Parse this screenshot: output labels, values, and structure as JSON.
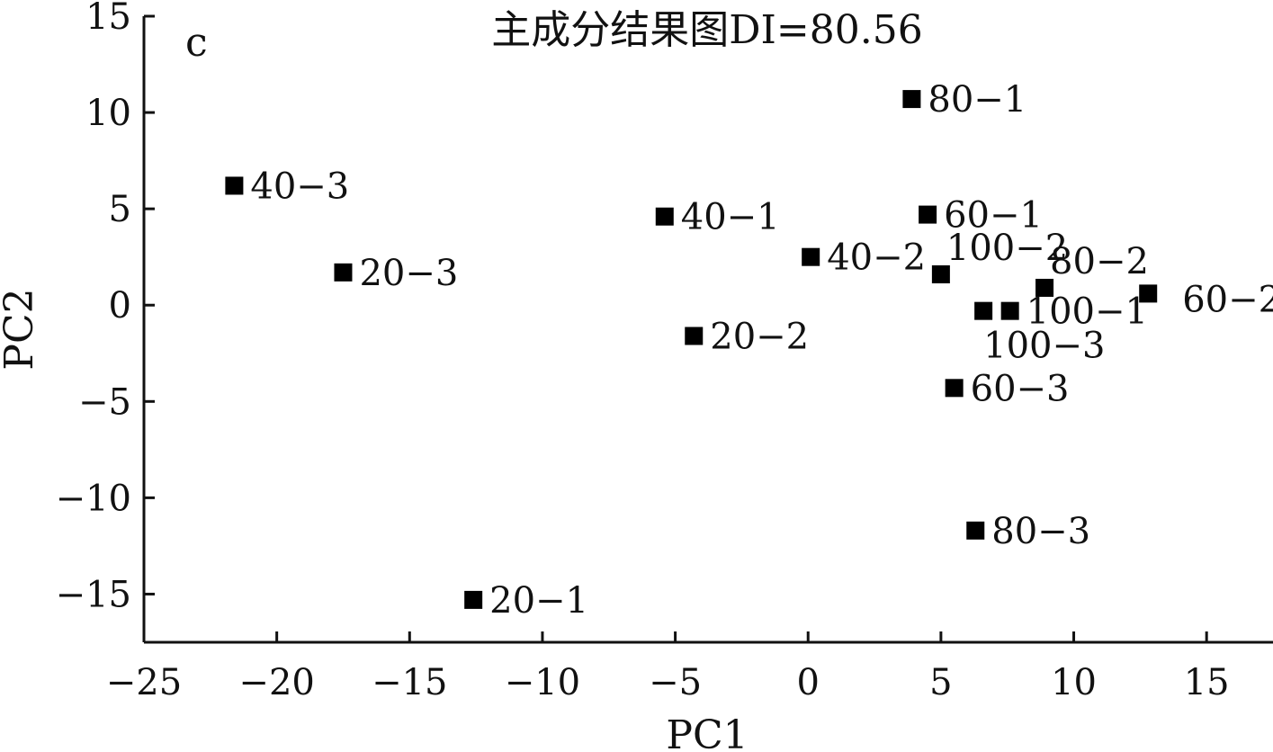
{
  "chart_data": {
    "type": "scatter",
    "title": "主成分结果图DI=80.56",
    "panel_label": "c",
    "xlabel": "PC1",
    "ylabel": "PC2",
    "xlim": [
      -25,
      17.5
    ],
    "ylim": [
      -17.5,
      15
    ],
    "xticks": [
      -25,
      -20,
      -15,
      -10,
      -5,
      0,
      5,
      10,
      15
    ],
    "yticks": [
      -15,
      -10,
      -5,
      0,
      5,
      10,
      15
    ],
    "xtick_labels": [
      "−25",
      "−20",
      "−15",
      "−10",
      "−5",
      "0",
      "5",
      "10",
      "15"
    ],
    "ytick_labels": [
      "−15",
      "−10",
      "−5",
      "0",
      "5",
      "10",
      "15"
    ],
    "grid": false,
    "marker": "square",
    "marker_color": "#000000",
    "points": [
      {
        "label": "80−1",
        "x": 3.9,
        "y": 10.7,
        "label_pos": "right"
      },
      {
        "label": "40−3",
        "x": -21.6,
        "y": 6.2,
        "label_pos": "right"
      },
      {
        "label": "40−1",
        "x": -5.4,
        "y": 4.6,
        "label_pos": "right"
      },
      {
        "label": "60−1",
        "x": 4.5,
        "y": 4.7,
        "label_pos": "right"
      },
      {
        "label": "20−3",
        "x": -17.5,
        "y": 1.7,
        "label_pos": "right"
      },
      {
        "label": "40−2",
        "x": 0.1,
        "y": 2.5,
        "label_pos": "right"
      },
      {
        "label": "100−2",
        "x": 5.0,
        "y": 1.6,
        "label_pos": "above-right"
      },
      {
        "label": "80−2",
        "x": 8.9,
        "y": 0.9,
        "label_pos": "above-right"
      },
      {
        "label": "60−2",
        "x": 12.8,
        "y": 0.6,
        "label_pos": "far-right"
      },
      {
        "label": "",
        "x": 6.6,
        "y": -0.3,
        "label_pos": "none"
      },
      {
        "label": "100−1",
        "x": 7.6,
        "y": -0.3,
        "label_pos": "right"
      },
      {
        "label": "100−3",
        "x": 6.6,
        "y": -0.3,
        "label_pos": "below-right"
      },
      {
        "label": "20−2",
        "x": -4.3,
        "y": -1.6,
        "label_pos": "right"
      },
      {
        "label": "60−3",
        "x": 5.5,
        "y": -4.3,
        "label_pos": "right"
      },
      {
        "label": "80−3",
        "x": 6.3,
        "y": -11.7,
        "label_pos": "right"
      },
      {
        "label": "20−1",
        "x": -12.6,
        "y": -15.3,
        "label_pos": "right"
      }
    ]
  }
}
